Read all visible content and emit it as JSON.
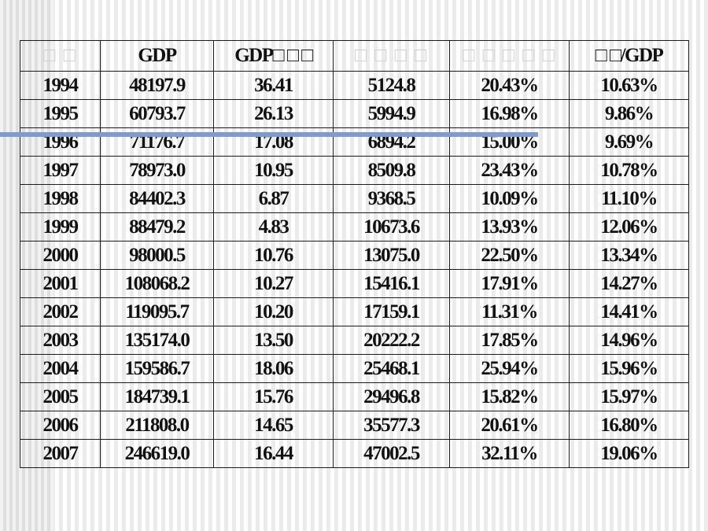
{
  "table": {
    "headers": [
      "□ □",
      "GDP",
      "GDP□ □ □",
      "□ □ □ □",
      "□ □ □ □ □",
      "□ □/GDP"
    ],
    "rows": [
      [
        "1994",
        "48197.9",
        "36.41",
        "5124.8",
        "20.43%",
        "10.63%"
      ],
      [
        "1995",
        "60793.7",
        "26.13",
        "5994.9",
        "16.98%",
        "9.86%"
      ],
      [
        "1996",
        "71176.7",
        "17.08",
        "6894.2",
        "15.00%",
        "9.69%"
      ],
      [
        "1997",
        "78973.0",
        "10.95",
        "8509.8",
        "23.43%",
        "10.78%"
      ],
      [
        "1998",
        "84402.3",
        "6.87",
        "9368.5",
        "10.09%",
        "11.10%"
      ],
      [
        "1999",
        "88479.2",
        "4.83",
        "10673.6",
        "13.93%",
        "12.06%"
      ],
      [
        "2000",
        "98000.5",
        "10.76",
        "13075.0",
        "22.50%",
        "13.34%"
      ],
      [
        "2001",
        "108068.2",
        "10.27",
        "15416.1",
        "17.91%",
        "14.27%"
      ],
      [
        "2002",
        "119095.7",
        "10.20",
        "17159.1",
        "11.31%",
        "14.41%"
      ],
      [
        "2003",
        "135174.0",
        "13.50",
        "20222.2",
        "17.85%",
        "14.96%"
      ],
      [
        "2004",
        "159586.7",
        "18.06",
        "25468.1",
        "25.94%",
        "15.96%"
      ],
      [
        "2005",
        "184739.1",
        "15.76",
        "29496.8",
        "15.82%",
        "15.97%"
      ],
      [
        "2006",
        "211808.0",
        "14.65",
        "35577.3",
        "20.61%",
        "16.80%"
      ],
      [
        "2007",
        "246619.0",
        "16.44",
        "47002.5",
        "32.11%",
        "19.06%"
      ]
    ]
  },
  "colors": {
    "accent_line": "#7f9cc8",
    "grid": "#1a1a1a",
    "background": "#f7f7f7"
  }
}
